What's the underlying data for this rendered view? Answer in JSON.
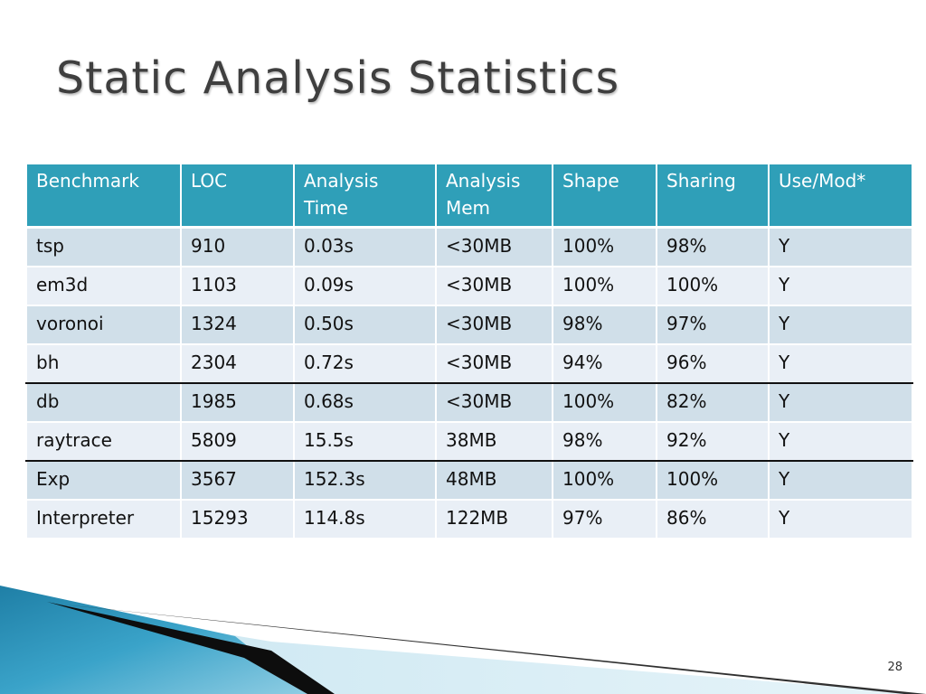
{
  "slide": {
    "title": "Static Analysis Statistics",
    "page_number": "28"
  },
  "table": {
    "headers": [
      "Benchmark",
      "LOC",
      "Analysis Time",
      "Analysis Mem",
      "Shape",
      "Sharing",
      "Use/Mod*"
    ],
    "rows": [
      [
        "tsp",
        "910",
        "0.03s",
        "<30MB",
        "100%",
        "98%",
        "Y"
      ],
      [
        "em3d",
        "1103",
        "0.09s",
        "<30MB",
        "100%",
        "100%",
        "Y"
      ],
      [
        "voronoi",
        "1324",
        "0.50s",
        "<30MB",
        "98%",
        "97%",
        "Y"
      ],
      [
        "bh",
        "2304",
        "0.72s",
        "<30MB",
        "94%",
        "96%",
        "Y"
      ],
      [
        "db",
        "1985",
        "0.68s",
        "<30MB",
        "100%",
        "82%",
        "Y"
      ],
      [
        "raytrace",
        "5809",
        "15.5s",
        "38MB",
        "98%",
        "92%",
        "Y"
      ],
      [
        "Exp",
        "3567",
        "152.3s",
        "48MB",
        "100%",
        "100%",
        "Y"
      ],
      [
        "Interpreter",
        "15293",
        "114.8s",
        "122MB",
        "97%",
        "86%",
        "Y"
      ]
    ]
  },
  "colors": {
    "header_bg": "#2f9fb8",
    "row_odd": "#d0dfe9",
    "row_even": "#e9eff6",
    "title": "#3f3f3f"
  }
}
